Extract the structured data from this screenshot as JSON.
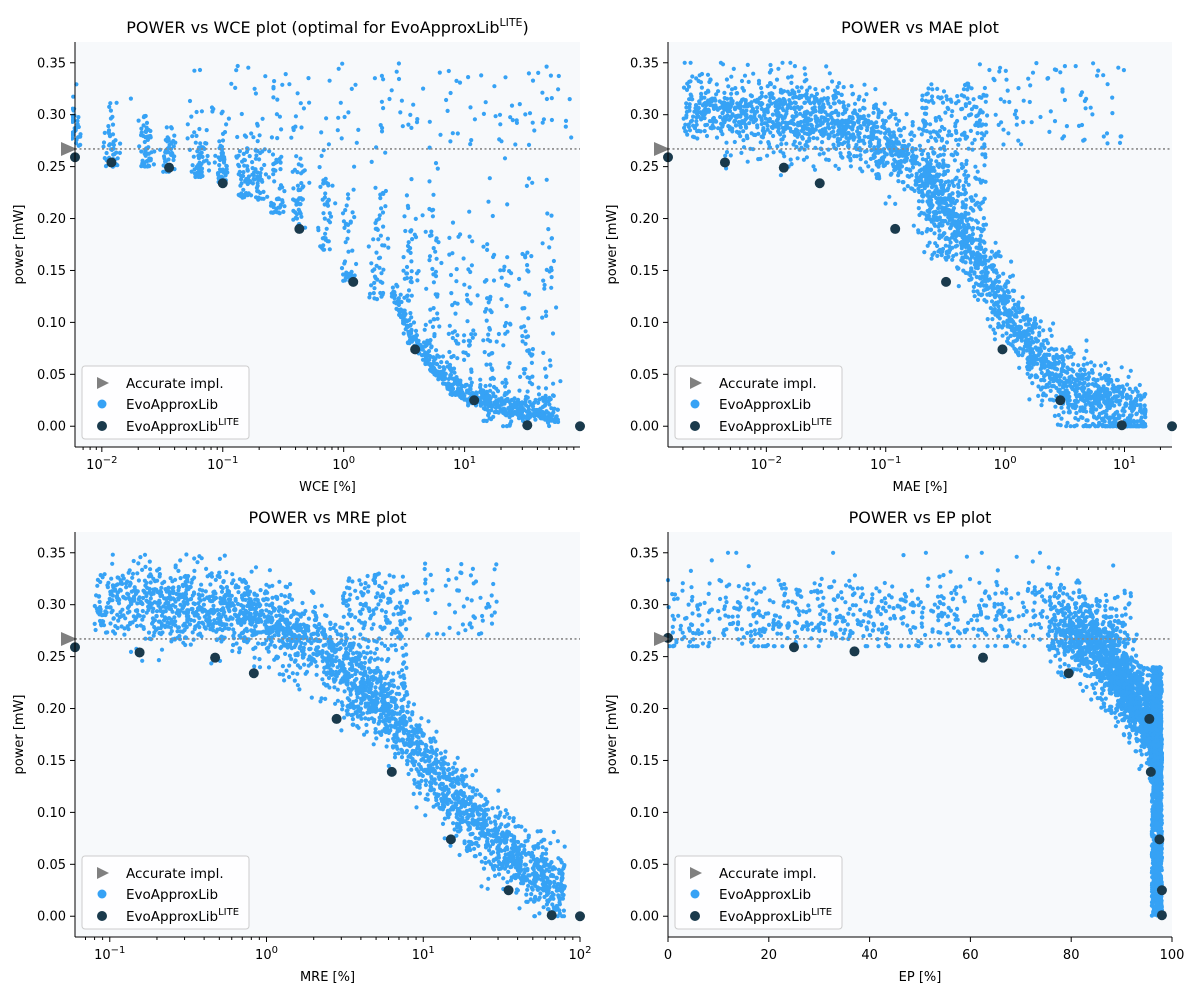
{
  "colors": {
    "evo": "#36a2f5",
    "lite": "#1a3a4c",
    "accurate": "#808080",
    "plot_bg": "#f7f9fb",
    "dotted": "#888888"
  },
  "legend": {
    "accurate": "Accurate impl.",
    "evo": "EvoApproxLib",
    "lite_base": "EvoApproxLib",
    "lite_sup": "LITE"
  },
  "chart_data": [
    {
      "type": "scatter",
      "title": "POWER vs WCE plot (optimal for EvoApproxLib",
      "title_sup": "LITE",
      "title_end": ")",
      "xlabel": "WCE [%]",
      "ylabel": "power [mW]",
      "xscale": "log",
      "xlim": [
        0.006,
        90
      ],
      "ylim": [
        -0.02,
        0.37
      ],
      "xticks": [
        {
          "v": 0.01,
          "base": "10",
          "exp": "−2"
        },
        {
          "v": 0.1,
          "base": "10",
          "exp": "−1"
        },
        {
          "v": 1,
          "base": "10",
          "exp": "0"
        },
        {
          "v": 10,
          "base": "10",
          "exp": "1"
        }
      ],
      "yticks": [
        "0.00",
        "0.05",
        "0.10",
        "0.15",
        "0.20",
        "0.25",
        "0.30",
        "0.35"
      ],
      "accurate_power": 0.267,
      "legend_position": "bottom-left",
      "lite_points": [
        [
          0.006,
          0.259
        ],
        [
          0.012,
          0.254
        ],
        [
          0.036,
          0.249
        ],
        [
          0.1,
          0.234
        ],
        [
          0.43,
          0.19
        ],
        [
          1.2,
          0.139
        ],
        [
          3.9,
          0.074
        ],
        [
          12,
          0.025
        ],
        [
          33,
          0.001
        ],
        [
          90,
          0.0
        ]
      ],
      "evo_model": "wce-columns"
    },
    {
      "type": "scatter",
      "title": "POWER vs MAE plot",
      "xlabel": "MAE [%]",
      "ylabel": "power [mW]",
      "xscale": "log",
      "xlim": [
        0.0015,
        25
      ],
      "ylim": [
        -0.02,
        0.37
      ],
      "xticks": [
        {
          "v": 0.01,
          "base": "10",
          "exp": "−2"
        },
        {
          "v": 0.1,
          "base": "10",
          "exp": "−1"
        },
        {
          "v": 1,
          "base": "10",
          "exp": "0"
        },
        {
          "v": 10,
          "base": "10",
          "exp": "1"
        }
      ],
      "yticks": [
        "0.00",
        "0.05",
        "0.10",
        "0.15",
        "0.20",
        "0.25",
        "0.30",
        "0.35"
      ],
      "accurate_power": 0.267,
      "legend_position": "bottom-left",
      "lite_points": [
        [
          0.0015,
          0.259
        ],
        [
          0.0045,
          0.254
        ],
        [
          0.014,
          0.249
        ],
        [
          0.028,
          0.234
        ],
        [
          0.12,
          0.19
        ],
        [
          0.32,
          0.139
        ],
        [
          0.95,
          0.074
        ],
        [
          2.9,
          0.025
        ],
        [
          9.5,
          0.001
        ],
        [
          25,
          0.0
        ]
      ],
      "evo_model": "smooth-mae"
    },
    {
      "type": "scatter",
      "title": "POWER vs MRE plot",
      "xlabel": "MRE [%]",
      "ylabel": "power [mW]",
      "xscale": "log",
      "xlim": [
        0.06,
        100
      ],
      "ylim": [
        -0.02,
        0.37
      ],
      "xticks": [
        {
          "v": 0.1,
          "base": "10",
          "exp": "−1"
        },
        {
          "v": 1,
          "base": "10",
          "exp": "0"
        },
        {
          "v": 10,
          "base": "10",
          "exp": "1"
        },
        {
          "v": 100,
          "base": "10",
          "exp": "2"
        }
      ],
      "yticks": [
        "0.00",
        "0.05",
        "0.10",
        "0.15",
        "0.20",
        "0.25",
        "0.30",
        "0.35"
      ],
      "accurate_power": 0.267,
      "legend_position": "bottom-left",
      "lite_points": [
        [
          0.06,
          0.259
        ],
        [
          0.155,
          0.254
        ],
        [
          0.47,
          0.249
        ],
        [
          0.83,
          0.234
        ],
        [
          2.8,
          0.19
        ],
        [
          6.3,
          0.139
        ],
        [
          15,
          0.074
        ],
        [
          35,
          0.025
        ],
        [
          66,
          0.001
        ],
        [
          100,
          0.0
        ]
      ],
      "evo_model": "smooth-mre"
    },
    {
      "type": "scatter",
      "title": "POWER vs EP plot",
      "xlabel": "EP [%]",
      "ylabel": "power [mW]",
      "xscale": "linear",
      "xlim": [
        0,
        100
      ],
      "ylim": [
        -0.02,
        0.37
      ],
      "xticks": [
        {
          "v": 0,
          "label": "0"
        },
        {
          "v": 20,
          "label": "20"
        },
        {
          "v": 40,
          "label": "40"
        },
        {
          "v": 60,
          "label": "60"
        },
        {
          "v": 80,
          "label": "80"
        },
        {
          "v": 100,
          "label": "100"
        }
      ],
      "yticks": [
        "0.00",
        "0.05",
        "0.10",
        "0.15",
        "0.20",
        "0.25",
        "0.30",
        "0.35"
      ],
      "accurate_power": 0.267,
      "legend_position": "bottom-left",
      "lite_points": [
        [
          0,
          0.268
        ],
        [
          25,
          0.259
        ],
        [
          37,
          0.255
        ],
        [
          62.5,
          0.249
        ],
        [
          79.5,
          0.234
        ],
        [
          95.5,
          0.19
        ],
        [
          95.8,
          0.139
        ],
        [
          97.5,
          0.074
        ],
        [
          98,
          0.025
        ],
        [
          98,
          0.001
        ]
      ],
      "evo_model": "ep-cliff"
    }
  ]
}
